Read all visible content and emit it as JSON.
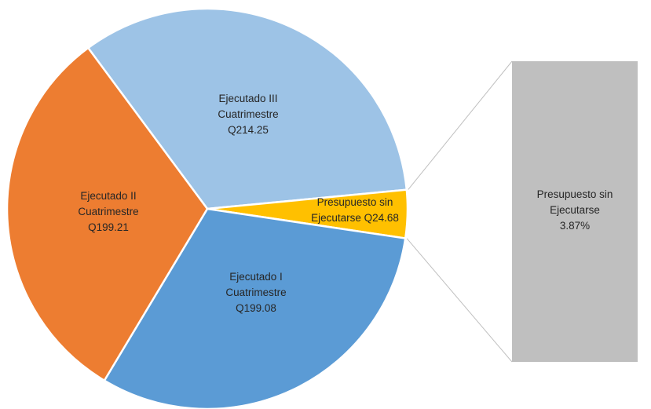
{
  "chart_data": {
    "type": "pie",
    "subtype": "pie-of-pie (bar of pie)",
    "unit_prefix": "Q",
    "slices": [
      {
        "name": "Ejecutado III Cuatrimestre",
        "label_lines": [
          "Ejecutado III",
          "Cuatrimestre",
          "Q214.25"
        ],
        "value": 214.25,
        "color": "#9DC3E6"
      },
      {
        "name": "Presupuesto sin Ejecutarse",
        "label_lines": [
          "Presupuesto sin",
          "Ejecutarse Q24.68"
        ],
        "value": 24.68,
        "color": "#FFC000"
      },
      {
        "name": "Ejecutado I Cuatrimestre",
        "label_lines": [
          "Ejecutado I",
          "Cuatrimestre",
          "Q199.08"
        ],
        "value": 199.08,
        "color": "#5B9BD5"
      },
      {
        "name": "Ejecutado II Cuatrimestre",
        "label_lines": [
          "Ejecutado II",
          "Cuatrimestre",
          "Q199.21"
        ],
        "value": 199.21,
        "color": "#ED7D31"
      }
    ],
    "secondary": {
      "type": "bar",
      "label_lines": [
        "Presupuesto sin",
        "Ejecutarse",
        "3.87%"
      ],
      "percent": 3.87,
      "color": "#BFBFBF"
    },
    "legend": "none",
    "connector_color": "#BFBFBF"
  }
}
